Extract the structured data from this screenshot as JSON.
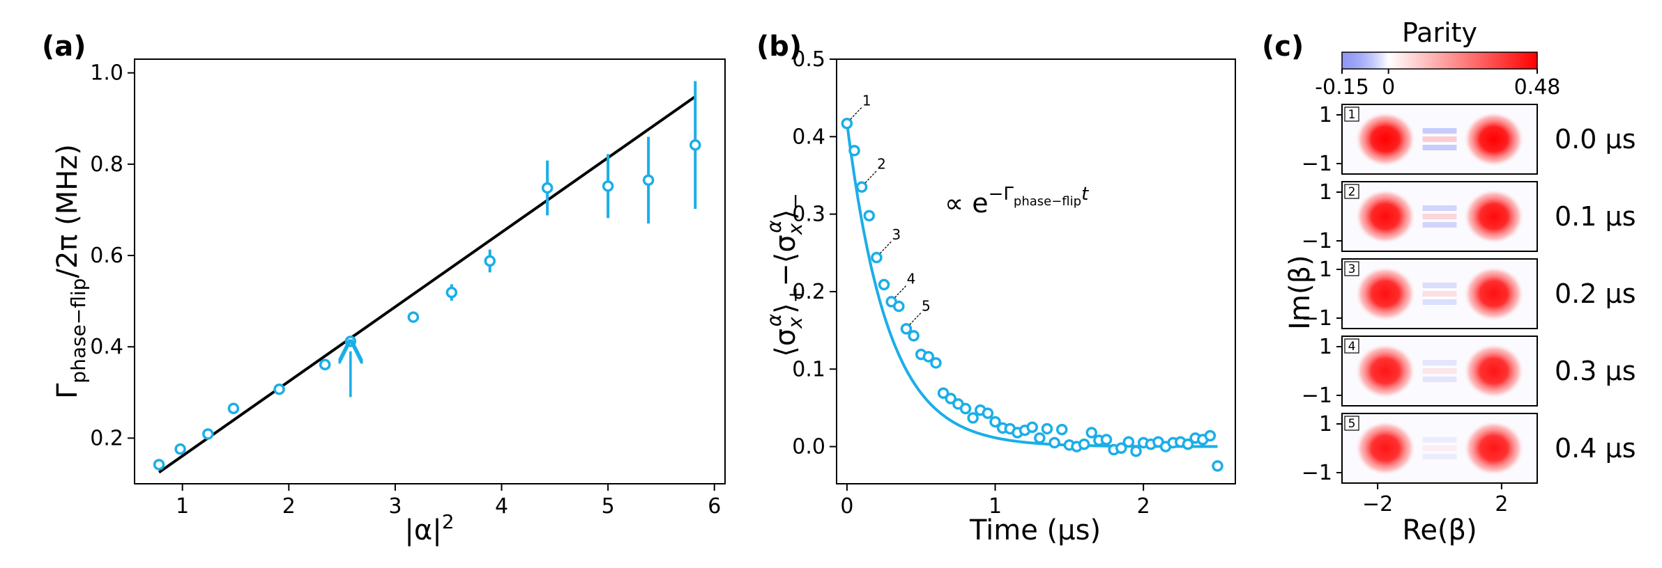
{
  "colors": {
    "data": "#1aaee8",
    "fit": "#000000",
    "axis": "#000000",
    "neg": "#3344ee",
    "pos": "#ff0000"
  },
  "chart_data": [
    {
      "panel": "(a)",
      "type": "scatter",
      "xlabel_base": "|α|",
      "xlabel_sup": "2",
      "ylabel_main": "Γ",
      "ylabel_sub": "phase−flip",
      "ylabel_tail": "/2π (MHz)",
      "xlim": [
        0.55,
        6.1
      ],
      "ylim": [
        0.1,
        1.03
      ],
      "xticks": [
        1,
        2,
        3,
        4,
        5,
        6
      ],
      "yticks": [
        0.2,
        0.4,
        0.6,
        0.8,
        1.0
      ],
      "ytick_labels": [
        "0.2",
        "0.4",
        "0.6",
        "0.8",
        "1.0"
      ],
      "series": [
        {
          "kind": "errorbar",
          "x": [
            0.78,
            0.98,
            1.24,
            1.48,
            1.91,
            2.34,
            2.58,
            3.17,
            3.53,
            3.89,
            4.43,
            5.0,
            5.38,
            5.82
          ],
          "y": [
            0.142,
            0.176,
            0.209,
            0.265,
            0.307,
            0.361,
            0.412,
            0.465,
            0.519,
            0.588,
            0.748,
            0.752,
            0.765,
            0.842
          ],
          "yerr": [
            0.004,
            0.006,
            0.006,
            0.008,
            0.008,
            0.009,
            0.01,
            0.012,
            0.018,
            0.025,
            0.06,
            0.07,
            0.095,
            0.14
          ]
        },
        {
          "kind": "line",
          "x": [
            0.78,
            5.82
          ],
          "y": [
            0.125,
            0.948
          ]
        }
      ],
      "annotations": [
        {
          "kind": "arrow",
          "x": 2.58,
          "y_from": 0.29,
          "y_to": 0.39
        }
      ]
    },
    {
      "panel": "(b)",
      "type": "scatter",
      "xlabel": "Time (μs)",
      "ylabel_text": "⟨σ",
      "annotation_text": "∝ e",
      "annotation_exp": "−Γ",
      "annotation_exp_sub": "phase−flip",
      "annotation_exp_tail": "t",
      "xlim": [
        -0.07,
        2.62
      ],
      "ylim": [
        -0.048,
        0.5
      ],
      "xticks": [
        0,
        1,
        2
      ],
      "yticks": [
        0.0,
        0.1,
        0.2,
        0.3,
        0.4,
        0.5
      ],
      "ytick_labels": [
        "0.0",
        "0.1",
        "0.2",
        "0.3",
        "0.4",
        "0.5"
      ],
      "series": [
        {
          "kind": "points",
          "x": [
            0.0,
            0.05,
            0.1,
            0.15,
            0.2,
            0.25,
            0.3,
            0.35,
            0.4,
            0.45,
            0.5,
            0.55,
            0.6,
            0.65,
            0.7,
            0.75,
            0.8,
            0.85,
            0.9,
            0.95,
            1.0,
            1.05,
            1.1,
            1.15,
            1.2,
            1.25,
            1.3,
            1.35,
            1.4,
            1.45,
            1.5,
            1.55,
            1.6,
            1.65,
            1.7,
            1.75,
            1.8,
            1.85,
            1.9,
            1.95,
            2.0,
            2.05,
            2.1,
            2.15,
            2.2,
            2.25,
            2.3,
            2.35,
            2.4,
            2.45,
            2.5
          ],
          "y": [
            0.417,
            0.382,
            0.335,
            0.298,
            0.244,
            0.209,
            0.187,
            0.181,
            0.152,
            0.143,
            0.119,
            0.116,
            0.108,
            0.069,
            0.062,
            0.055,
            0.049,
            0.037,
            0.047,
            0.043,
            0.032,
            0.024,
            0.023,
            0.018,
            0.021,
            0.025,
            0.011,
            0.023,
            0.005,
            0.022,
            0.002,
            0.0,
            0.003,
            0.018,
            0.008,
            0.009,
            -0.004,
            -0.002,
            0.006,
            -0.006,
            0.005,
            0.003,
            0.006,
            0.0,
            0.005,
            0.006,
            0.003,
            0.011,
            0.009,
            0.014,
            -0.025
          ]
        },
        {
          "kind": "fit",
          "amplitude": 0.418,
          "rate": 3.6,
          "offset": 0.0,
          "x_range": [
            0.0,
            2.5
          ]
        }
      ],
      "point_labels": [
        {
          "text": "1",
          "x": 0.0,
          "y": 0.417
        },
        {
          "text": "2",
          "x": 0.1,
          "y": 0.335
        },
        {
          "text": "3",
          "x": 0.2,
          "y": 0.244
        },
        {
          "text": "4",
          "x": 0.3,
          "y": 0.187
        },
        {
          "text": "5",
          "x": 0.4,
          "y": 0.152
        }
      ]
    },
    {
      "panel": "(c)",
      "type": "heatmap",
      "colorbar_title": "Parity",
      "colorbar_ticks": [
        "-0.15",
        "0",
        "0.48"
      ],
      "colorbar_range": [
        -0.15,
        0.48
      ],
      "xlabel": "Re(β)",
      "ylabel": "Im(β)",
      "xticks": [
        "−2",
        "2"
      ],
      "yticks": [
        "1",
        "−1"
      ],
      "frames": [
        {
          "index": "1",
          "time": "0.0 μs",
          "peak": 0.48,
          "fringe": 0.2
        },
        {
          "index": "2",
          "time": "0.1 μs",
          "peak": 0.46,
          "fringe": 0.16
        },
        {
          "index": "3",
          "time": "0.2 μs",
          "peak": 0.45,
          "fringe": 0.12
        },
        {
          "index": "4",
          "time": "0.3 μs",
          "peak": 0.44,
          "fringe": 0.09
        },
        {
          "index": "5",
          "time": "0.4 μs",
          "peak": 0.44,
          "fringe": 0.06
        }
      ]
    }
  ]
}
